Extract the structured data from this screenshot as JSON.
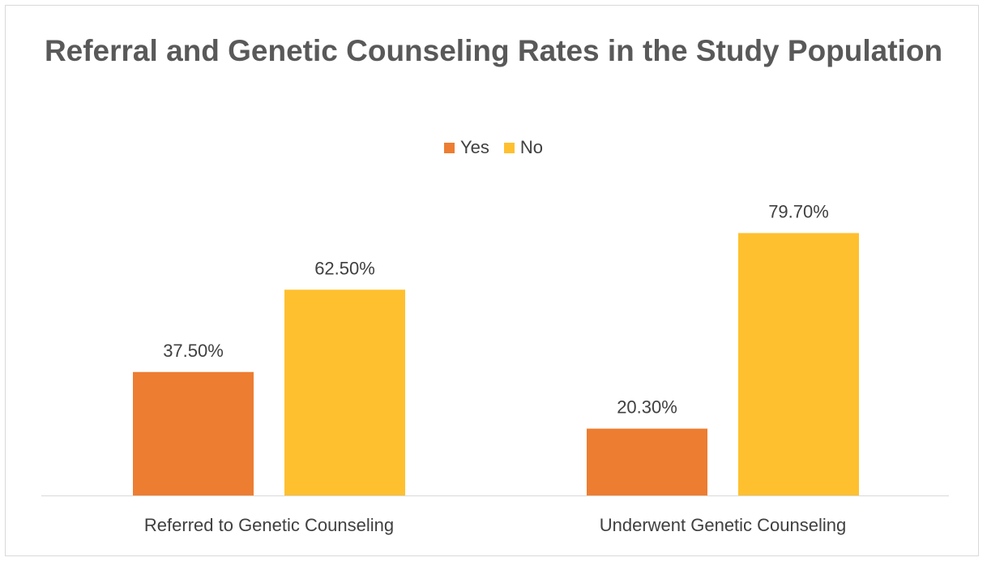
{
  "chart_data": {
    "type": "bar",
    "title": "Referral and Genetic Counseling Rates in the Study Population",
    "categories": [
      "Referred to Genetic Counseling",
      "Underwent Genetic Counseling"
    ],
    "series": [
      {
        "name": "Yes",
        "color": "#ED7D31",
        "values": [
          37.5,
          20.3
        ],
        "labels": [
          "37.50%",
          "20.30%"
        ]
      },
      {
        "name": "No",
        "color": "#FFC02F",
        "values": [
          62.5,
          79.7
        ],
        "labels": [
          "62.50%",
          "79.70%"
        ]
      }
    ],
    "xlabel": "",
    "ylabel": "",
    "ylim": [
      0,
      100
    ],
    "grid": false,
    "legend_position": "top",
    "y_axis_visible": false
  }
}
